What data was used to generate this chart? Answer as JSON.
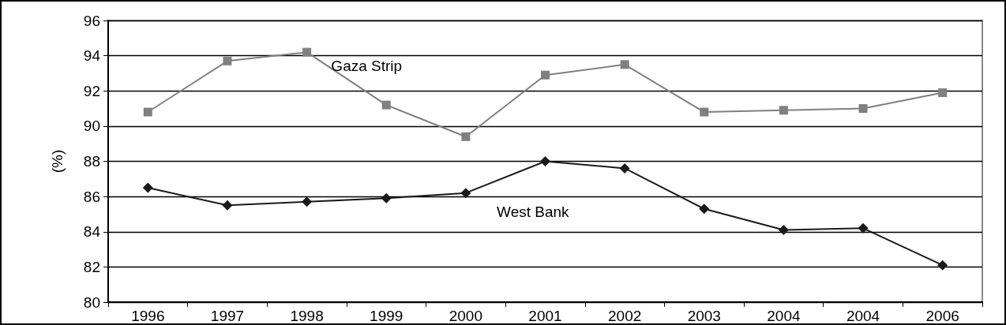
{
  "chart_data": {
    "type": "line",
    "ylabel": "(%)",
    "categories": [
      "1996",
      "1997",
      "1998",
      "1999",
      "2000",
      "2001",
      "2002",
      "2003",
      "2004",
      "2004",
      "2006"
    ],
    "series": [
      {
        "name": "Gaza Strip",
        "color": "#808080",
        "marker": "square",
        "values": [
          90.8,
          93.7,
          94.2,
          91.2,
          89.4,
          92.9,
          93.5,
          90.8,
          90.9,
          91.0,
          91.9
        ]
      },
      {
        "name": "West Bank",
        "color": "#1a1a1a",
        "marker": "diamond",
        "values": [
          86.5,
          85.5,
          85.7,
          85.9,
          86.2,
          88.0,
          87.6,
          85.3,
          84.1,
          84.2,
          82.1
        ]
      }
    ],
    "ylim": [
      80,
      96
    ],
    "yticks": [
      80,
      82,
      84,
      86,
      88,
      90,
      92,
      94,
      96
    ],
    "grid": "y",
    "legend": false
  }
}
